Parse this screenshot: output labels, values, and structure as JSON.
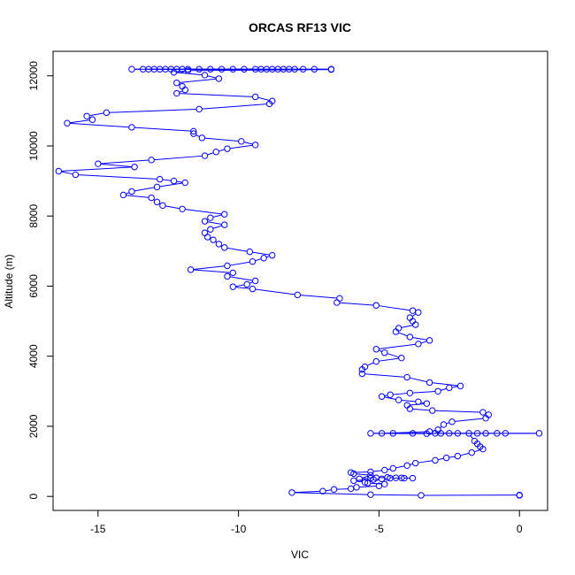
{
  "chart_data": {
    "type": "line",
    "title": "ORCAS RF13 VIC",
    "xlabel": "VIC",
    "ylabel": "Altitude (m)",
    "xlim": [
      -16.6,
      1.0
    ],
    "ylim": [
      -400,
      12700
    ],
    "xticks": [
      -15,
      -10,
      -5,
      0
    ],
    "yticks": [
      0,
      2000,
      4000,
      6000,
      8000,
      10000,
      12000
    ],
    "grid": false,
    "legend": "none",
    "series": [
      {
        "color": "#0000ff",
        "marker": "open-circle",
        "points": [
          {
            "x": 0.0,
            "y": 30
          },
          {
            "x": 0.0,
            "y": 40
          },
          {
            "x": -3.5,
            "y": 30
          },
          {
            "x": -5.3,
            "y": 50
          },
          {
            "x": -8.1,
            "y": 110
          },
          {
            "x": -7.0,
            "y": 150
          },
          {
            "x": -6.6,
            "y": 200
          },
          {
            "x": -6.0,
            "y": 220
          },
          {
            "x": -5.8,
            "y": 260
          },
          {
            "x": -5.0,
            "y": 300
          },
          {
            "x": -4.8,
            "y": 350
          },
          {
            "x": -5.4,
            "y": 380
          },
          {
            "x": -5.5,
            "y": 400
          },
          {
            "x": -5.9,
            "y": 450
          },
          {
            "x": -5.2,
            "y": 480
          },
          {
            "x": -4.9,
            "y": 500
          },
          {
            "x": -4.6,
            "y": 520
          },
          {
            "x": -4.2,
            "y": 530
          },
          {
            "x": -3.8,
            "y": 520
          },
          {
            "x": -4.1,
            "y": 520
          },
          {
            "x": -4.4,
            "y": 530
          },
          {
            "x": -4.7,
            "y": 540
          },
          {
            "x": -5.1,
            "y": 530
          },
          {
            "x": -5.3,
            "y": 520
          },
          {
            "x": -5.7,
            "y": 500
          },
          {
            "x": -5.3,
            "y": 600
          },
          {
            "x": -5.9,
            "y": 650
          },
          {
            "x": -6.0,
            "y": 680
          },
          {
            "x": -5.3,
            "y": 700
          },
          {
            "x": -4.8,
            "y": 750
          },
          {
            "x": -4.5,
            "y": 800
          },
          {
            "x": -4.0,
            "y": 880
          },
          {
            "x": -3.7,
            "y": 950
          },
          {
            "x": -3.0,
            "y": 1030
          },
          {
            "x": -2.6,
            "y": 1100
          },
          {
            "x": -2.2,
            "y": 1150
          },
          {
            "x": -1.7,
            "y": 1250
          },
          {
            "x": -1.3,
            "y": 1350
          },
          {
            "x": -1.4,
            "y": 1420
          },
          {
            "x": -1.5,
            "y": 1500
          },
          {
            "x": -1.6,
            "y": 1580
          },
          {
            "x": -1.8,
            "y": 1800
          },
          {
            "x": -2.8,
            "y": 1800
          },
          {
            "x": -4.5,
            "y": 1800
          },
          {
            "x": -3.8,
            "y": 1800
          },
          {
            "x": -3.0,
            "y": 1800
          },
          {
            "x": -2.2,
            "y": 1800
          },
          {
            "x": -1.5,
            "y": 1800
          },
          {
            "x": -0.8,
            "y": 1800
          },
          {
            "x": 0.7,
            "y": 1800
          },
          {
            "x": -0.5,
            "y": 1800
          },
          {
            "x": -1.2,
            "y": 1800
          },
          {
            "x": -2.5,
            "y": 1800
          },
          {
            "x": -3.3,
            "y": 1790
          },
          {
            "x": -5.3,
            "y": 1800
          },
          {
            "x": -4.9,
            "y": 1800
          },
          {
            "x": -3.2,
            "y": 1850
          },
          {
            "x": -2.9,
            "y": 1900
          },
          {
            "x": -2.7,
            "y": 2050
          },
          {
            "x": -2.4,
            "y": 2130
          },
          {
            "x": -1.2,
            "y": 2230
          },
          {
            "x": -1.1,
            "y": 2330
          },
          {
            "x": -1.3,
            "y": 2400
          },
          {
            "x": -3.1,
            "y": 2450
          },
          {
            "x": -3.9,
            "y": 2500
          },
          {
            "x": -4.0,
            "y": 2600
          },
          {
            "x": -3.3,
            "y": 2650
          },
          {
            "x": -3.6,
            "y": 2700
          },
          {
            "x": -4.3,
            "y": 2750
          },
          {
            "x": -4.9,
            "y": 2850
          },
          {
            "x": -4.6,
            "y": 2900
          },
          {
            "x": -3.9,
            "y": 2950
          },
          {
            "x": -2.9,
            "y": 3000
          },
          {
            "x": -2.5,
            "y": 3100
          },
          {
            "x": -2.1,
            "y": 3150
          },
          {
            "x": -3.2,
            "y": 3250
          },
          {
            "x": -4.0,
            "y": 3400
          },
          {
            "x": -5.6,
            "y": 3500
          },
          {
            "x": -5.6,
            "y": 3620
          },
          {
            "x": -5.5,
            "y": 3700
          },
          {
            "x": -5.1,
            "y": 3850
          },
          {
            "x": -4.2,
            "y": 3950
          },
          {
            "x": -4.8,
            "y": 4100
          },
          {
            "x": -5.1,
            "y": 4200
          },
          {
            "x": -3.6,
            "y": 4350
          },
          {
            "x": -3.2,
            "y": 4450
          },
          {
            "x": -3.9,
            "y": 4550
          },
          {
            "x": -4.4,
            "y": 4700
          },
          {
            "x": -4.3,
            "y": 4800
          },
          {
            "x": -3.7,
            "y": 4900
          },
          {
            "x": -3.8,
            "y": 5000
          },
          {
            "x": -3.9,
            "y": 5100
          },
          {
            "x": -3.6,
            "y": 5250
          },
          {
            "x": -3.8,
            "y": 5300
          },
          {
            "x": -5.1,
            "y": 5450
          },
          {
            "x": -6.5,
            "y": 5530
          },
          {
            "x": -6.4,
            "y": 5650
          },
          {
            "x": -7.9,
            "y": 5750
          },
          {
            "x": -9.5,
            "y": 5920
          },
          {
            "x": -10.2,
            "y": 5980
          },
          {
            "x": -9.7,
            "y": 6050
          },
          {
            "x": -9.4,
            "y": 6150
          },
          {
            "x": -10.4,
            "y": 6280
          },
          {
            "x": -10.2,
            "y": 6380
          },
          {
            "x": -11.7,
            "y": 6470
          },
          {
            "x": -10.4,
            "y": 6580
          },
          {
            "x": -9.5,
            "y": 6700
          },
          {
            "x": -9.1,
            "y": 6800
          },
          {
            "x": -8.8,
            "y": 6880
          },
          {
            "x": -9.6,
            "y": 6980
          },
          {
            "x": -10.5,
            "y": 7100
          },
          {
            "x": -10.7,
            "y": 7200
          },
          {
            "x": -10.9,
            "y": 7320
          },
          {
            "x": -11.1,
            "y": 7400
          },
          {
            "x": -11.2,
            "y": 7520
          },
          {
            "x": -11.0,
            "y": 7620
          },
          {
            "x": -10.5,
            "y": 7750
          },
          {
            "x": -11.2,
            "y": 7850
          },
          {
            "x": -11.0,
            "y": 7950
          },
          {
            "x": -10.5,
            "y": 8050
          },
          {
            "x": -12.0,
            "y": 8200
          },
          {
            "x": -12.7,
            "y": 8300
          },
          {
            "x": -12.9,
            "y": 8400
          },
          {
            "x": -13.1,
            "y": 8520
          },
          {
            "x": -14.1,
            "y": 8600
          },
          {
            "x": -13.8,
            "y": 8700
          },
          {
            "x": -12.9,
            "y": 8830
          },
          {
            "x": -11.9,
            "y": 8950
          },
          {
            "x": -12.3,
            "y": 9000
          },
          {
            "x": -12.8,
            "y": 9050
          },
          {
            "x": -15.8,
            "y": 9180
          },
          {
            "x": -16.4,
            "y": 9280
          },
          {
            "x": -13.7,
            "y": 9400
          },
          {
            "x": -15.0,
            "y": 9490
          },
          {
            "x": -13.1,
            "y": 9600
          },
          {
            "x": -11.2,
            "y": 9720
          },
          {
            "x": -10.8,
            "y": 9830
          },
          {
            "x": -10.4,
            "y": 9920
          },
          {
            "x": -9.4,
            "y": 10030
          },
          {
            "x": -9.9,
            "y": 10130
          },
          {
            "x": -11.3,
            "y": 10230
          },
          {
            "x": -11.6,
            "y": 10350
          },
          {
            "x": -11.6,
            "y": 10420
          },
          {
            "x": -13.8,
            "y": 10530
          },
          {
            "x": -16.1,
            "y": 10650
          },
          {
            "x": -15.2,
            "y": 10750
          },
          {
            "x": -15.4,
            "y": 10850
          },
          {
            "x": -14.7,
            "y": 10950
          },
          {
            "x": -11.4,
            "y": 11050
          },
          {
            "x": -8.9,
            "y": 11200
          },
          {
            "x": -8.8,
            "y": 11280
          },
          {
            "x": -9.4,
            "y": 11400
          },
          {
            "x": -12.2,
            "y": 11500
          },
          {
            "x": -11.9,
            "y": 11600
          },
          {
            "x": -12.0,
            "y": 11700
          },
          {
            "x": -12.2,
            "y": 11800
          },
          {
            "x": -10.7,
            "y": 11920
          },
          {
            "x": -11.2,
            "y": 12020
          },
          {
            "x": -12.3,
            "y": 12100
          },
          {
            "x": -11.8,
            "y": 12150
          },
          {
            "x": -6.7,
            "y": 12180
          },
          {
            "x": -13.8,
            "y": 12190
          },
          {
            "x": -13.4,
            "y": 12190
          },
          {
            "x": -13.0,
            "y": 12190
          },
          {
            "x": -12.6,
            "y": 12190
          },
          {
            "x": -12.2,
            "y": 12190
          },
          {
            "x": -11.8,
            "y": 12190
          },
          {
            "x": -11.4,
            "y": 12190
          },
          {
            "x": -11.0,
            "y": 12190
          },
          {
            "x": -10.6,
            "y": 12190
          },
          {
            "x": -10.2,
            "y": 12190
          },
          {
            "x": -9.8,
            "y": 12190
          },
          {
            "x": -9.4,
            "y": 12190
          },
          {
            "x": -9.0,
            "y": 12190
          },
          {
            "x": -8.6,
            "y": 12190
          },
          {
            "x": -8.2,
            "y": 12190
          },
          {
            "x": -7.7,
            "y": 12190
          },
          {
            "x": -7.3,
            "y": 12190
          },
          {
            "x": -6.7,
            "y": 12190
          },
          {
            "x": -13.2,
            "y": 12190
          },
          {
            "x": -12.8,
            "y": 12190
          },
          {
            "x": -12.4,
            "y": 12190
          },
          {
            "x": -12.0,
            "y": 12190
          },
          {
            "x": -9.2,
            "y": 12190
          },
          {
            "x": -8.8,
            "y": 12190
          },
          {
            "x": -8.4,
            "y": 12190
          },
          {
            "x": -8.0,
            "y": 12190
          }
        ]
      }
    ]
  }
}
